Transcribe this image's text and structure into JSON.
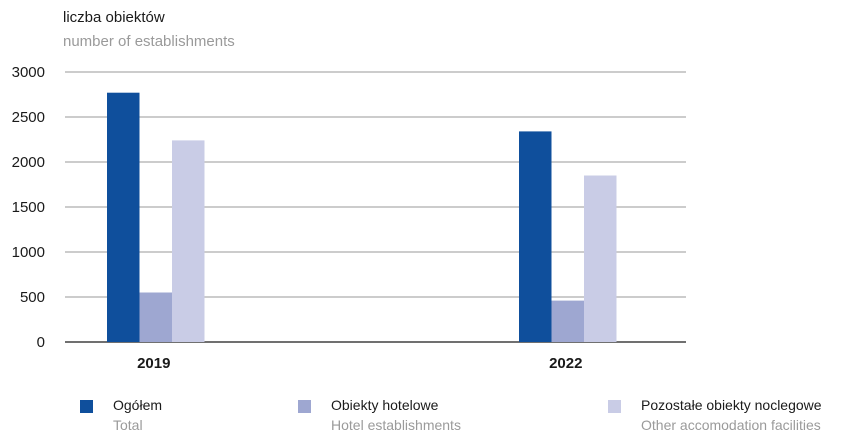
{
  "chart_data": {
    "type": "bar",
    "ylabel_pl": "liczba obiektów",
    "ylabel_en": "number of establishments",
    "categories": [
      "2019",
      "2022"
    ],
    "ylim": [
      0,
      3000
    ],
    "yticks": [
      0,
      500,
      1000,
      1500,
      2000,
      2500,
      3000
    ],
    "grid": true,
    "legend_position": "bottom",
    "series": [
      {
        "name": "Ogółem",
        "name_en": "Total",
        "color": "#0f4f9c",
        "values": [
          2770,
          2340
        ]
      },
      {
        "name": "Obiekty hotelowe",
        "name_en": "Hotel establishments",
        "color": "#9ea7d1",
        "values": [
          550,
          460
        ]
      },
      {
        "name": "Pozostałe obiekty noclegowe",
        "name_en": "Other accomodation facilities",
        "color": "#c9cce6",
        "values": [
          2240,
          1850
        ]
      }
    ]
  }
}
